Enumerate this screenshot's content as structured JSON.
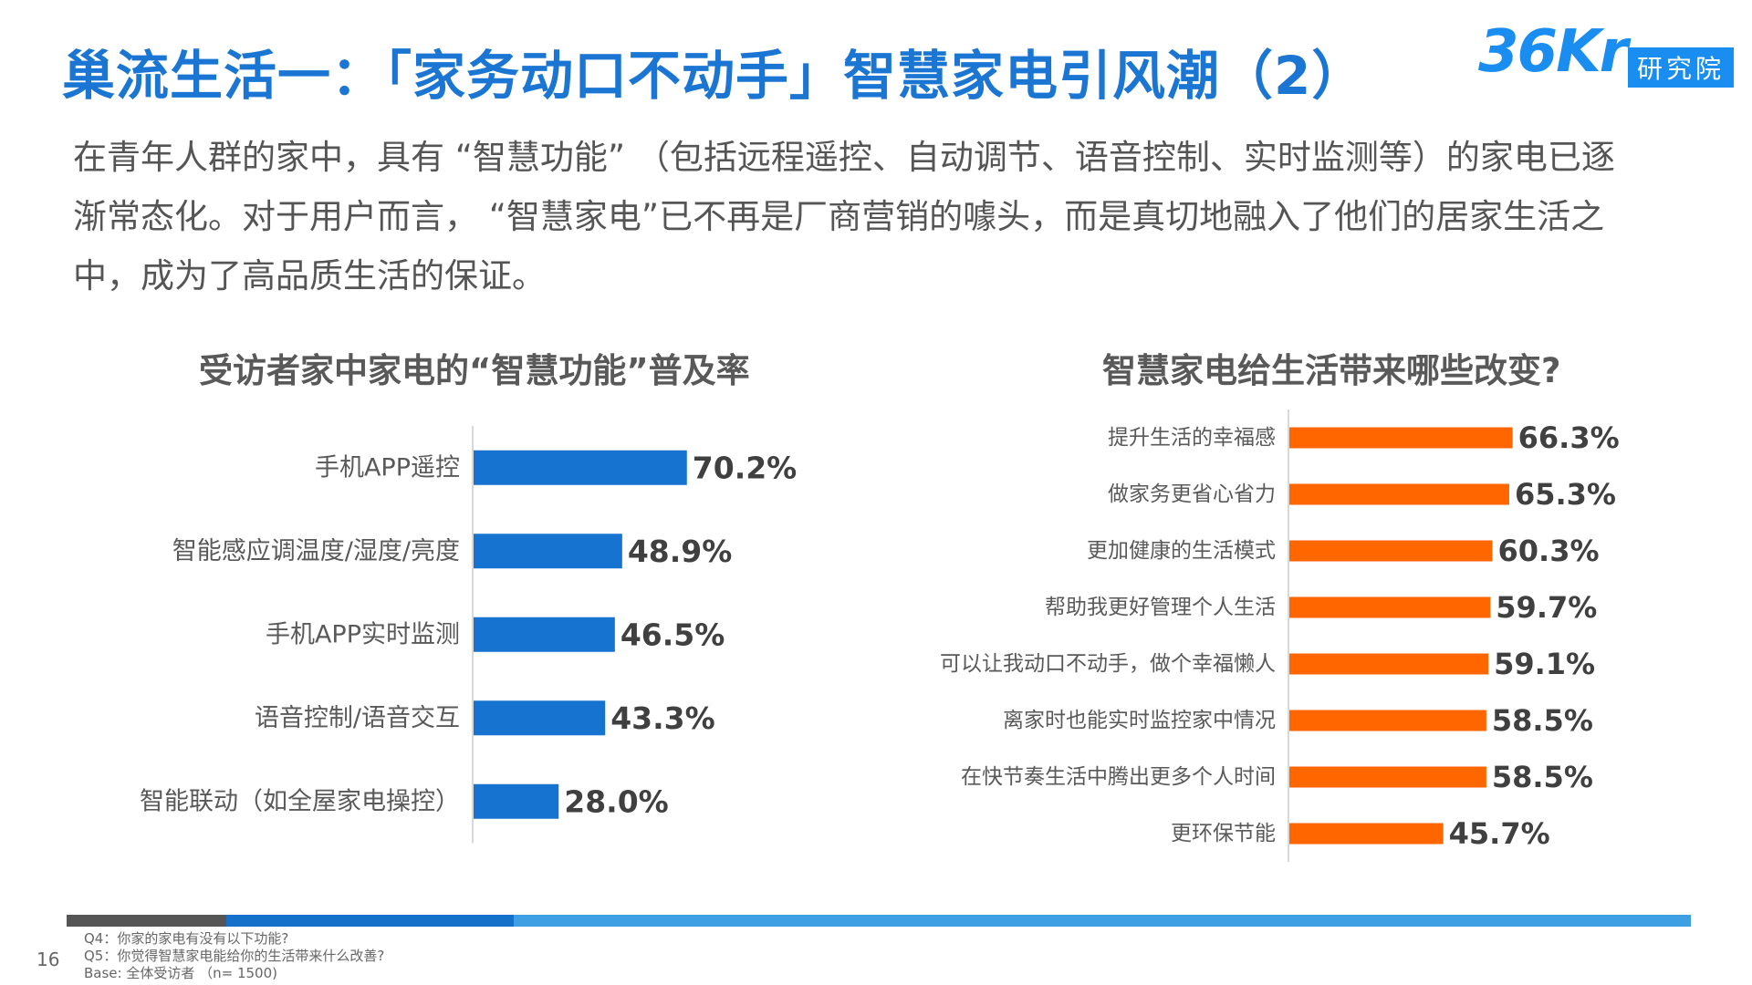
{
  "title": "巢流生活一：「家务动口不动手」智慧家电引风潮（2）",
  "logo": {
    "mark": "36Kr",
    "sub": "研究院"
  },
  "intro": "在青年人群的家中，具有 “智慧功能” （包括远程遥控、自动调节、语音控制、实时监测等）的家电已逐渐常态化。对于用户而言， “智慧家电”已不再是厂商营销的噱头，而是真切地融入了他们的居家生活之中，成为了高品质生活的保证。",
  "colors": {
    "title": "#1a76d2",
    "left_bar": "#1673d0",
    "right_bar": "#ff6600",
    "footer_dark": "#555555",
    "footer_mid": "#1570c9",
    "footer_light": "#3ea0e3"
  },
  "chart_data": [
    {
      "type": "bar",
      "orientation": "horizontal",
      "title": "受访者家中家电的“智慧功能”普及率",
      "categories": [
        "手机APP遥控",
        "智能感应调温度/湿度/亮度",
        "手机APP实时监测",
        "语音控制/语音交互",
        "智能联动（如全屋家电操控）"
      ],
      "values": [
        70.2,
        48.9,
        46.5,
        43.3,
        28.0
      ],
      "labels": [
        "70.2%",
        "48.9%",
        "46.5%",
        "43.3%",
        "28.0%"
      ],
      "unit": "%",
      "xlim": [
        0,
        100
      ]
    },
    {
      "type": "bar",
      "orientation": "horizontal",
      "title": "智慧家电给生活带来哪些改变?",
      "categories": [
        "提升生活的幸福感",
        "做家务更省心省力",
        "更加健康的生活模式",
        "帮助我更好管理个人生活",
        "可以让我动口不动手，做个幸福懒人",
        "离家时也能实时监控家中情况",
        "在快节奏生活中腾出更多个人时间",
        "更环保节能"
      ],
      "values": [
        66.3,
        65.3,
        60.3,
        59.7,
        59.1,
        58.5,
        58.5,
        45.7
      ],
      "labels": [
        "66.3%",
        "65.3%",
        "60.3%",
        "59.7%",
        "59.1%",
        "58.5%",
        "58.5%",
        "45.7%"
      ],
      "unit": "%",
      "xlim": [
        0,
        100
      ]
    }
  ],
  "footer": {
    "page": "16",
    "notes": [
      "Q4：你家的家电有没有以下功能?",
      "Q5：你觉得智慧家电能给你的生活带来什么改善?",
      "Base: 全体受访者 （n= 1500)"
    ]
  }
}
